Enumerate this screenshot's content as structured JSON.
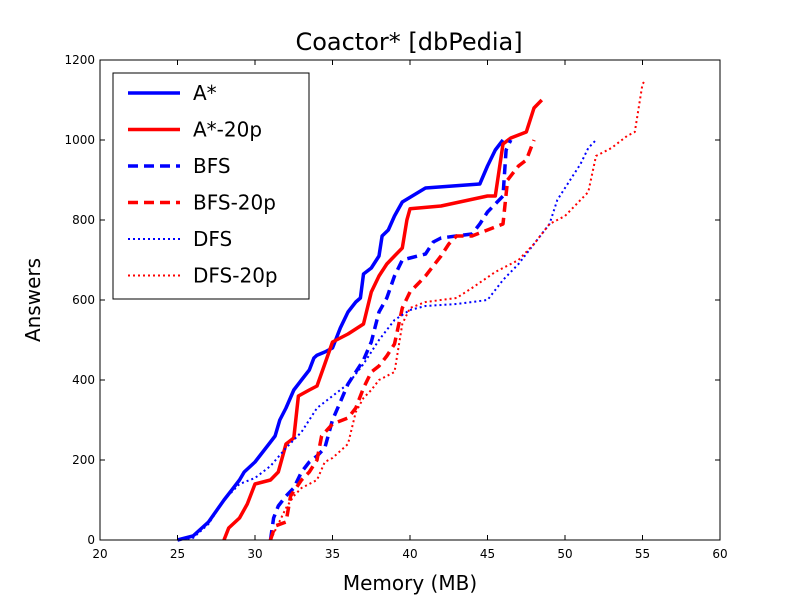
{
  "chart_data": {
    "type": "line",
    "title": "Coactor* [dbPedia]",
    "xlabel": "Memory (MB)",
    "ylabel": "Answers",
    "xlim": [
      20,
      60
    ],
    "ylim": [
      0,
      1200
    ],
    "xticks": [
      "20",
      "25",
      "30",
      "35",
      "40",
      "45",
      "50",
      "55",
      "60"
    ],
    "yticks": [
      "0",
      "200",
      "400",
      "600",
      "800",
      "1000",
      "1200"
    ],
    "grid": false,
    "legend_position": "top-left",
    "series": [
      {
        "name": "A*",
        "color": "#0000ff",
        "style": "solid",
        "points": [
          [
            25,
            0
          ],
          [
            26,
            10
          ],
          [
            27,
            45
          ],
          [
            28,
            100
          ],
          [
            28.5,
            125
          ],
          [
            29,
            150
          ],
          [
            29.3,
            170
          ],
          [
            30,
            195
          ],
          [
            31,
            245
          ],
          [
            31.3,
            260
          ],
          [
            31.6,
            300
          ],
          [
            32,
            330
          ],
          [
            32.5,
            375
          ],
          [
            33,
            400
          ],
          [
            33.5,
            425
          ],
          [
            33.8,
            455
          ],
          [
            34,
            462
          ],
          [
            34.5,
            470
          ],
          [
            35,
            480
          ],
          [
            35.5,
            530
          ],
          [
            36,
            570
          ],
          [
            36.5,
            595
          ],
          [
            36.8,
            605
          ],
          [
            37,
            665
          ],
          [
            37.5,
            680
          ],
          [
            38,
            710
          ],
          [
            38.2,
            760
          ],
          [
            38.6,
            775
          ],
          [
            39,
            810
          ],
          [
            39.5,
            845
          ],
          [
            41,
            880
          ],
          [
            44.5,
            890
          ],
          [
            45,
            935
          ],
          [
            45.5,
            975
          ],
          [
            46,
            1000
          ]
        ]
      },
      {
        "name": "A*-20p",
        "color": "#ff0000",
        "style": "solid",
        "points": [
          [
            28,
            0
          ],
          [
            28.3,
            30
          ],
          [
            29,
            55
          ],
          [
            29.5,
            90
          ],
          [
            30,
            140
          ],
          [
            30.5,
            145
          ],
          [
            31,
            150
          ],
          [
            31.5,
            170
          ],
          [
            32,
            240
          ],
          [
            32.5,
            255
          ],
          [
            32.8,
            360
          ],
          [
            33.5,
            375
          ],
          [
            34,
            385
          ],
          [
            34.5,
            440
          ],
          [
            35,
            495
          ],
          [
            36,
            515
          ],
          [
            37,
            540
          ],
          [
            37.5,
            620
          ],
          [
            38,
            660
          ],
          [
            38.5,
            690
          ],
          [
            39,
            710
          ],
          [
            39.5,
            730
          ],
          [
            39.8,
            800
          ],
          [
            40,
            828
          ],
          [
            42,
            835
          ],
          [
            45,
            860
          ],
          [
            45.5,
            860
          ],
          [
            46,
            990
          ],
          [
            46.5,
            1005
          ],
          [
            47.5,
            1020
          ],
          [
            48,
            1080
          ],
          [
            48.5,
            1100
          ]
        ]
      },
      {
        "name": "BFS",
        "color": "#0000ff",
        "style": "dashed",
        "points": [
          [
            31,
            0
          ],
          [
            31.2,
            55
          ],
          [
            31.5,
            85
          ],
          [
            32,
            110
          ],
          [
            32.5,
            130
          ],
          [
            33,
            170
          ],
          [
            33.5,
            195
          ],
          [
            34,
            210
          ],
          [
            34.5,
            230
          ],
          [
            35,
            300
          ],
          [
            35.5,
            345
          ],
          [
            36,
            390
          ],
          [
            36.5,
            420
          ],
          [
            37,
            450
          ],
          [
            37.5,
            495
          ],
          [
            38,
            570
          ],
          [
            38.5,
            605
          ],
          [
            39,
            660
          ],
          [
            39.5,
            700
          ],
          [
            40,
            705
          ],
          [
            41,
            715
          ],
          [
            41.5,
            745
          ],
          [
            42,
            755
          ],
          [
            44,
            765
          ],
          [
            44.5,
            790
          ],
          [
            45,
            820
          ],
          [
            46,
            860
          ],
          [
            46.2,
            975
          ],
          [
            46.5,
            1000
          ]
        ]
      },
      {
        "name": "BFS-20p",
        "color": "#ff0000",
        "style": "dashed",
        "points": [
          [
            31,
            0
          ],
          [
            31.3,
            35
          ],
          [
            32,
            45
          ],
          [
            32.3,
            110
          ],
          [
            33,
            150
          ],
          [
            33.5,
            170
          ],
          [
            34,
            200
          ],
          [
            34.3,
            260
          ],
          [
            35,
            290
          ],
          [
            36,
            305
          ],
          [
            36.5,
            330
          ],
          [
            37,
            380
          ],
          [
            37.5,
            420
          ],
          [
            38,
            435
          ],
          [
            38.5,
            460
          ],
          [
            39,
            490
          ],
          [
            39.5,
            580
          ],
          [
            40,
            620
          ],
          [
            40.5,
            640
          ],
          [
            41,
            660
          ],
          [
            42,
            710
          ],
          [
            42.5,
            740
          ],
          [
            43,
            760
          ],
          [
            44,
            760
          ],
          [
            45,
            775
          ],
          [
            46,
            790
          ],
          [
            46.3,
            900
          ],
          [
            47,
            935
          ],
          [
            47.5,
            950
          ],
          [
            48,
            1000
          ]
        ]
      },
      {
        "name": "DFS",
        "color": "#0000ff",
        "style": "dotted",
        "points": [
          [
            25,
            0
          ],
          [
            26,
            5
          ],
          [
            27,
            40
          ],
          [
            28,
            100
          ],
          [
            29,
            140
          ],
          [
            30,
            155
          ],
          [
            31,
            185
          ],
          [
            32,
            230
          ],
          [
            33,
            270
          ],
          [
            34,
            330
          ],
          [
            35,
            360
          ],
          [
            36,
            390
          ],
          [
            37,
            440
          ],
          [
            38,
            500
          ],
          [
            39,
            550
          ],
          [
            40,
            575
          ],
          [
            41,
            585
          ],
          [
            43,
            590
          ],
          [
            45,
            600
          ],
          [
            46,
            650
          ],
          [
            47,
            690
          ],
          [
            48,
            740
          ],
          [
            49,
            790
          ],
          [
            49.5,
            850
          ],
          [
            50,
            880
          ],
          [
            51,
            940
          ],
          [
            51.5,
            980
          ],
          [
            52,
            1000
          ]
        ]
      },
      {
        "name": "DFS-20p",
        "color": "#ff0000",
        "style": "dotted",
        "points": [
          [
            31,
            0
          ],
          [
            31.5,
            40
          ],
          [
            32,
            80
          ],
          [
            32.5,
            110
          ],
          [
            33,
            130
          ],
          [
            34,
            150
          ],
          [
            34.5,
            195
          ],
          [
            35,
            205
          ],
          [
            36,
            240
          ],
          [
            36.5,
            320
          ],
          [
            37,
            355
          ],
          [
            37.5,
            375
          ],
          [
            38,
            400
          ],
          [
            39,
            420
          ],
          [
            39.5,
            540
          ],
          [
            40,
            580
          ],
          [
            41,
            595
          ],
          [
            43,
            605
          ],
          [
            44,
            630
          ],
          [
            45.5,
            670
          ],
          [
            47,
            700
          ],
          [
            48,
            740
          ],
          [
            49,
            790
          ],
          [
            50,
            810
          ],
          [
            51,
            850
          ],
          [
            51.5,
            870
          ],
          [
            52,
            960
          ],
          [
            53,
            980
          ],
          [
            54,
            1010
          ],
          [
            54.5,
            1020
          ],
          [
            55,
            1140
          ],
          [
            55.2,
            1150
          ]
        ]
      }
    ]
  }
}
